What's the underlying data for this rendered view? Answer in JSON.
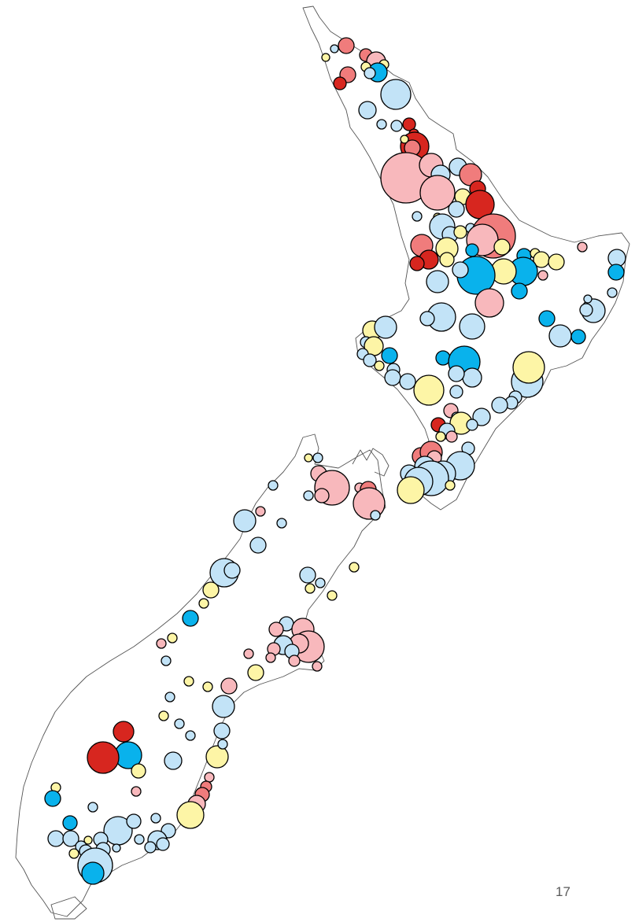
{
  "page": {
    "number": "17"
  },
  "legend_colors": {
    "dark-red": "#d7261f",
    "red": "#f07c7c",
    "pink": "#f8b8bc",
    "yellow": "#fdf5a6",
    "light-blue": "#c2e3f7",
    "blue": "#09b2ec"
  }
}
